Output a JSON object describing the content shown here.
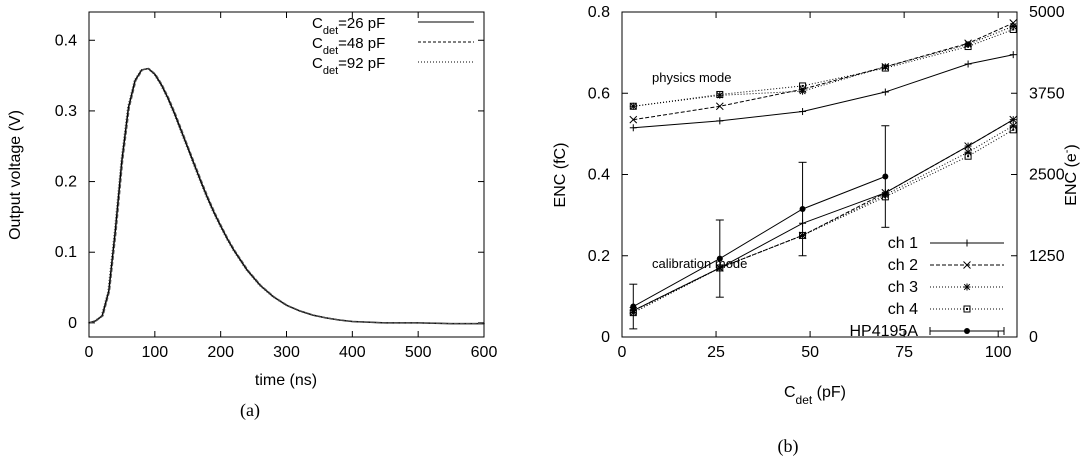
{
  "chart_data": [
    {
      "id": "a",
      "type": "line",
      "caption": "(a)",
      "xlabel": "time (ns)",
      "ylabel": "Output voltage (V)",
      "xlim": [
        0,
        600
      ],
      "ylim": [
        -0.02,
        0.44
      ],
      "xticks": [
        0,
        100,
        200,
        300,
        400,
        500,
        600
      ],
      "yticks": [
        0,
        0.1,
        0.2,
        0.3,
        0.4
      ],
      "ytick_labels": [
        "0",
        "0.1",
        "0.2",
        "0.3",
        "0.4"
      ],
      "grid": false,
      "legend_position": "top-right",
      "series": [
        {
          "name_main": "C",
          "name_sub": "det",
          "name_rest": "=26 pF",
          "style": "solid"
        },
        {
          "name_main": "C",
          "name_sub": "det",
          "name_rest": "=48 pF",
          "style": "dashed"
        },
        {
          "name_main": "C",
          "name_sub": "det",
          "name_rest": "=92 pF",
          "style": "dotted"
        }
      ],
      "x": [
        0,
        10,
        20,
        30,
        40,
        50,
        60,
        70,
        80,
        90,
        100,
        110,
        120,
        130,
        140,
        150,
        160,
        170,
        180,
        190,
        200,
        210,
        220,
        240,
        260,
        280,
        300,
        320,
        340,
        360,
        380,
        400,
        450,
        500,
        550,
        600
      ],
      "y": [
        0,
        0.003,
        0.01,
        0.045,
        0.13,
        0.23,
        0.305,
        0.343,
        0.358,
        0.36,
        0.352,
        0.337,
        0.318,
        0.296,
        0.272,
        0.248,
        0.224,
        0.2,
        0.177,
        0.156,
        0.137,
        0.119,
        0.103,
        0.075,
        0.053,
        0.037,
        0.025,
        0.017,
        0.011,
        0.007,
        0.004,
        0.002,
        0.0,
        0.0,
        -0.001,
        -0.001
      ]
    },
    {
      "id": "b",
      "type": "line",
      "caption": "(b)",
      "xlabel_main": "C",
      "xlabel_sub": "det",
      "xlabel_rest": " (pF)",
      "ylabel": "ENC (fC)",
      "y2label": "ENC (e",
      "y2label_sup": "-",
      "y2label_end": ")",
      "xlim": [
        0,
        105
      ],
      "ylim": [
        0,
        0.8
      ],
      "y2lim": [
        0,
        5000
      ],
      "xticks": [
        0,
        25,
        50,
        75,
        100
      ],
      "yticks": [
        0,
        0.2,
        0.4,
        0.6,
        0.8
      ],
      "ytick_labels": [
        "0",
        "0.2",
        "0.4",
        "0.6",
        "0.8"
      ],
      "y2ticks": [
        0,
        1250,
        2500,
        3750,
        5000
      ],
      "grid": false,
      "legend_position": "bottom-right",
      "annotations": [
        "physics mode",
        "calibration mode"
      ],
      "x": [
        3,
        26,
        48,
        70,
        92,
        104
      ],
      "series": [
        {
          "name": "ch 1",
          "style": "solid",
          "marker": "plus",
          "physics": [
            0.515,
            0.532,
            0.555,
            0.603,
            0.672,
            0.695
          ],
          "calibration": [
            0.065,
            0.17,
            0.28,
            0.355,
            0.47,
            0.535
          ]
        },
        {
          "name": "ch 2",
          "style": "dashed",
          "marker": "cross",
          "physics": [
            0.535,
            0.568,
            0.61,
            0.665,
            0.723,
            0.773
          ],
          "calibration": [
            0.065,
            0.17,
            0.25,
            0.355,
            0.47,
            0.535
          ]
        },
        {
          "name": "ch 3",
          "style": "dotted",
          "marker": "star",
          "physics": [
            0.568,
            0.595,
            0.605,
            0.665,
            0.72,
            0.765
          ],
          "calibration": [
            0.06,
            0.17,
            0.25,
            0.35,
            0.455,
            0.52
          ]
        },
        {
          "name": "ch 4",
          "style": "dotted",
          "marker": "square",
          "physics": [
            0.568,
            0.597,
            0.618,
            0.662,
            0.715,
            0.757
          ],
          "calibration": [
            0.06,
            0.17,
            0.25,
            0.345,
            0.445,
            0.51
          ]
        },
        {
          "name": "HP4195A",
          "style": "solid",
          "marker": "dot-errorbar",
          "x": [
            3,
            26,
            48,
            70
          ],
          "values": [
            0.075,
            0.193,
            0.315,
            0.395
          ],
          "errors": [
            0.055,
            0.095,
            0.115,
            0.125
          ]
        }
      ]
    }
  ]
}
